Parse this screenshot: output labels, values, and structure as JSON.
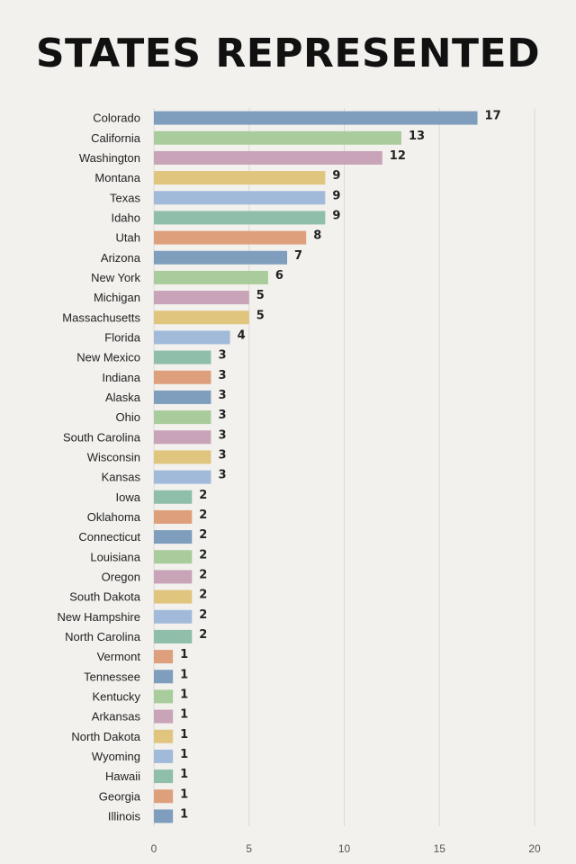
{
  "title": "STATES REPRESENTED",
  "chart_data": {
    "type": "bar",
    "orientation": "horizontal",
    "title": "STATES REPRESENTED",
    "xlabel": "",
    "ylabel": "",
    "xlim": [
      0,
      20
    ],
    "xticks": [
      0,
      5,
      10,
      15,
      20
    ],
    "grid": "vertical",
    "categories": [
      "Colorado",
      "California",
      "Washington",
      "Montana",
      "Texas",
      "Idaho",
      "Utah",
      "Arizona",
      "New York",
      "Michigan",
      "Massachusetts",
      "Florida",
      "New Mexico",
      "Indiana",
      "Alaska",
      "Ohio",
      "South Carolina",
      "Wisconsin",
      "Kansas",
      "Iowa",
      "Oklahoma",
      "Connecticut",
      "Louisiana",
      "Oregon",
      "South Dakota",
      "New Hampshire",
      "North Carolina",
      "Vermont",
      "Tennessee",
      "Kentucky",
      "Arkansas",
      "North Dakota",
      "Wyoming",
      "Hawaii",
      "Georgia",
      "Illinois"
    ],
    "values": [
      17,
      13,
      12,
      9,
      9,
      9,
      8,
      7,
      6,
      5,
      5,
      4,
      3,
      3,
      3,
      3,
      3,
      3,
      3,
      2,
      2,
      2,
      2,
      2,
      2,
      2,
      2,
      1,
      1,
      1,
      1,
      1,
      1,
      1,
      1,
      1
    ],
    "palette": [
      "#7f9ebd",
      "#a9cc9c",
      "#c9a3b8",
      "#e0c57e",
      "#a2bada",
      "#8fbeaa",
      "#dea07c"
    ],
    "grid_color": "#d9d9d9",
    "label_color": "#222222"
  }
}
